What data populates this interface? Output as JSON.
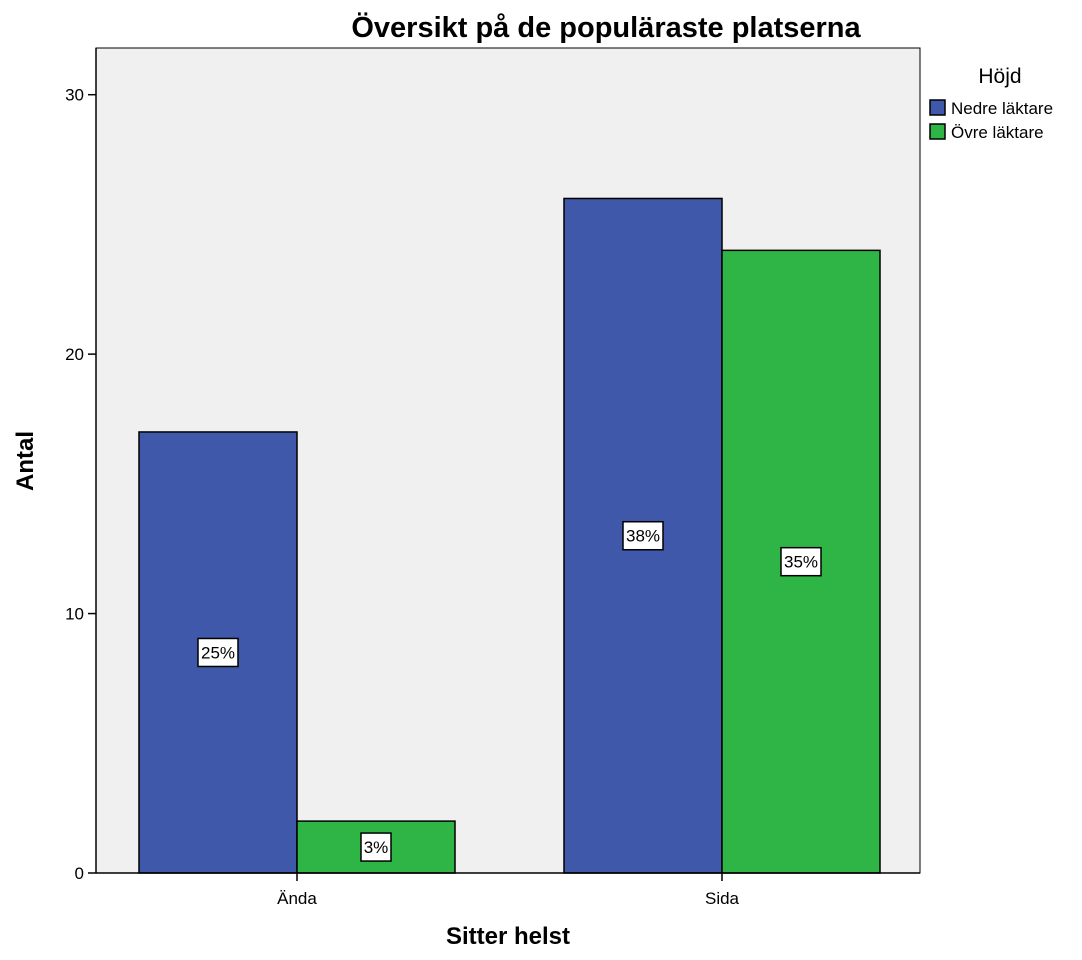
{
  "chart_data": {
    "type": "bar",
    "title": "Översikt på de populäraste platserna",
    "xlabel": "Sitter helst",
    "ylabel": "Antal",
    "categories": [
      "Ända",
      "Sida"
    ],
    "series": [
      {
        "name": "Nedre läktare",
        "color": "#3f58aa",
        "values": [
          17,
          26
        ],
        "labels": [
          "25%",
          "38%"
        ]
      },
      {
        "name": "Övre läktare",
        "color": "#2fb545",
        "values": [
          2,
          24
        ],
        "labels": [
          "3%",
          "35%"
        ]
      }
    ],
    "ylim": [
      0,
      31.8
    ],
    "yticks": [
      0,
      10,
      20,
      30
    ],
    "grid": false,
    "legend": {
      "title": "Höjd",
      "position": "top-right"
    },
    "plot_background": "#f0f0f0"
  }
}
